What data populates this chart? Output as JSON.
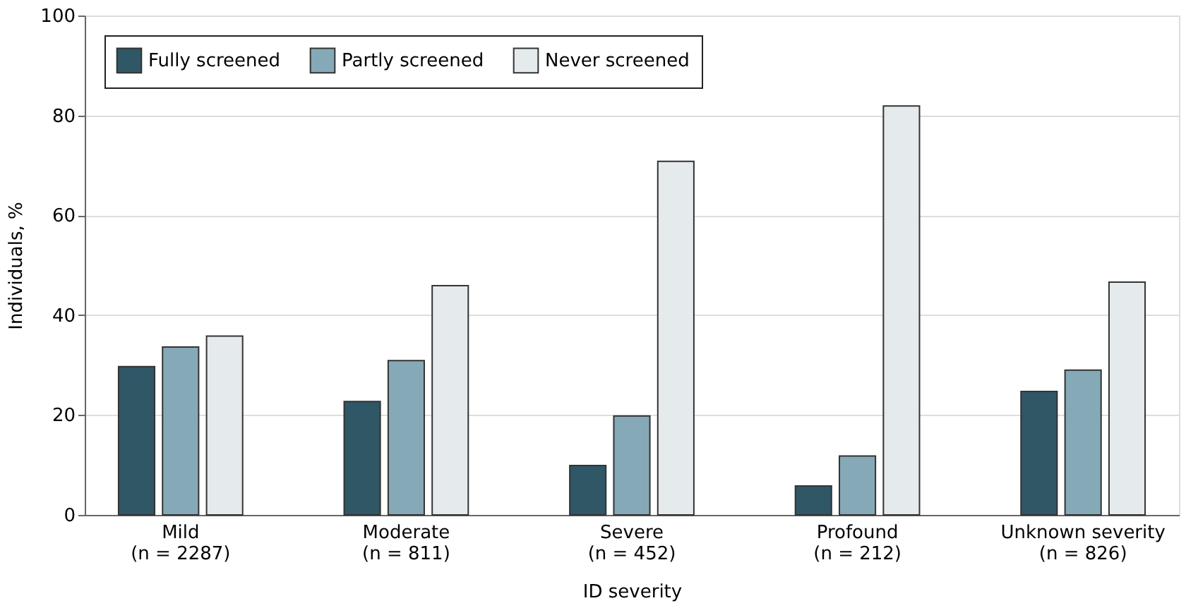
{
  "chart_data": {
    "type": "bar",
    "xlabel": "ID severity",
    "ylabel": "Individuals, %",
    "categories": [
      "Mild\n(n = 2287)",
      "Moderate\n(n = 811)",
      "Severe\n(n = 452)",
      "Profound\n(n = 212)",
      "Unknown severity\n(n = 826)"
    ],
    "series": [
      {
        "name": "Fully screened",
        "color": "#2f5766",
        "values": [
          29.7,
          22.7,
          9.9,
          5.8,
          24.7
        ]
      },
      {
        "name": "Partly screened",
        "color": "#86a9b7",
        "values": [
          33.6,
          30.9,
          19.8,
          11.8,
          29.0
        ]
      },
      {
        "name": "Never screened",
        "color": "#e5eaed",
        "values": [
          35.8,
          45.9,
          70.8,
          81.9,
          46.6
        ]
      }
    ],
    "ylim": [
      0,
      100
    ],
    "yticks": [
      0,
      20,
      40,
      60,
      80,
      100
    ],
    "grid": "y",
    "legend": "top left"
  }
}
